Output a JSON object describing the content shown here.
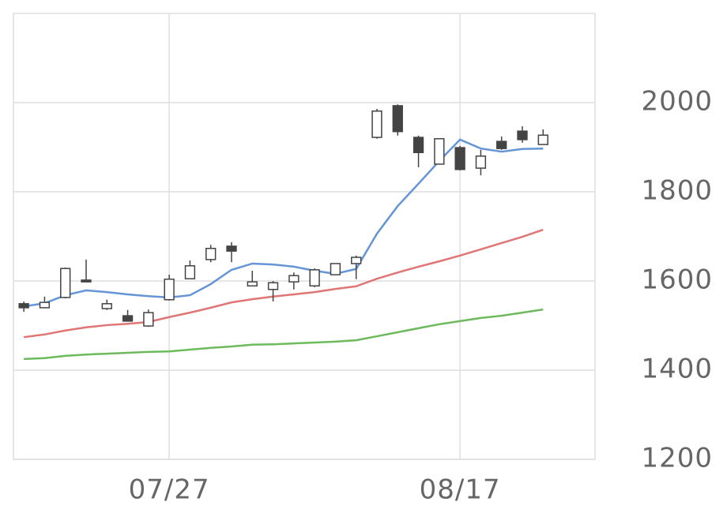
{
  "chart_data": {
    "type": "candlestick",
    "categories": [
      null,
      null,
      null,
      null,
      null,
      null,
      null,
      "07/27",
      null,
      null,
      null,
      null,
      null,
      null,
      null,
      null,
      null,
      null,
      null,
      null,
      null,
      "08/17",
      null,
      null,
      null,
      null
    ],
    "open": [
      1549,
      1540,
      1563,
      1602,
      1538,
      1522,
      1499,
      1558,
      1605,
      1648,
      1678,
      1589,
      1581,
      1598,
      1589,
      1614,
      1639,
      1922,
      1993,
      1922,
      1862,
      1899,
      1853,
      1913,
      1936,
      1906
    ],
    "high": [
      1554,
      1565,
      1630,
      1648,
      1558,
      1535,
      1536,
      1614,
      1646,
      1681,
      1687,
      1623,
      1600,
      1619,
      1628,
      1639,
      1657,
      1986,
      1996,
      1926,
      1919,
      1903,
      1894,
      1924,
      1947,
      1940
    ],
    "low": [
      1531,
      1540,
      1561,
      1598,
      1535,
      1510,
      1497,
      1556,
      1605,
      1642,
      1642,
      1589,
      1554,
      1581,
      1586,
      1614,
      1604,
      1919,
      1926,
      1855,
      1862,
      1848,
      1837,
      1894,
      1910,
      1906
    ],
    "close": [
      1540,
      1552,
      1628,
      1598,
      1549,
      1510,
      1529,
      1604,
      1634,
      1673,
      1667,
      1598,
      1596,
      1612,
      1625,
      1639,
      1653,
      1981,
      1935,
      1888,
      1919,
      1850,
      1880,
      1897,
      1917,
      1927
    ],
    "up_color": "#ffffff",
    "down_color": "#444444",
    "edge_color": "#444444",
    "series": [
      {
        "color": "#6495d6",
        "values": [
          1543,
          1550,
          1568,
          1579,
          1575,
          1570,
          1566,
          1563,
          1568,
          1593,
          1625,
          1639,
          1637,
          1632,
          1623,
          1616,
          1627,
          1706,
          1768,
          1818,
          1869,
          1917,
          1897,
          1890,
          1896,
          1897
        ]
      },
      {
        "color": "#e07575",
        "values": [
          1474,
          1480,
          1489,
          1496,
          1501,
          1504,
          1508,
          1519,
          1529,
          1540,
          1552,
          1559,
          1565,
          1570,
          1575,
          1582,
          1588,
          1605,
          1619,
          1632,
          1644,
          1657,
          1671,
          1685,
          1699,
          1715
        ]
      },
      {
        "color": "#6cba5c",
        "values": [
          1425,
          1427,
          1432,
          1435,
          1437,
          1439,
          1441,
          1442,
          1446,
          1450,
          1453,
          1457,
          1458,
          1460,
          1462,
          1464,
          1467,
          1476,
          1485,
          1494,
          1503,
          1510,
          1517,
          1522,
          1529,
          1536
        ]
      }
    ],
    "ylim": [
      1200,
      2200
    ],
    "yticks": [
      1200,
      1400,
      1600,
      1800,
      2000
    ],
    "grid": true
  }
}
